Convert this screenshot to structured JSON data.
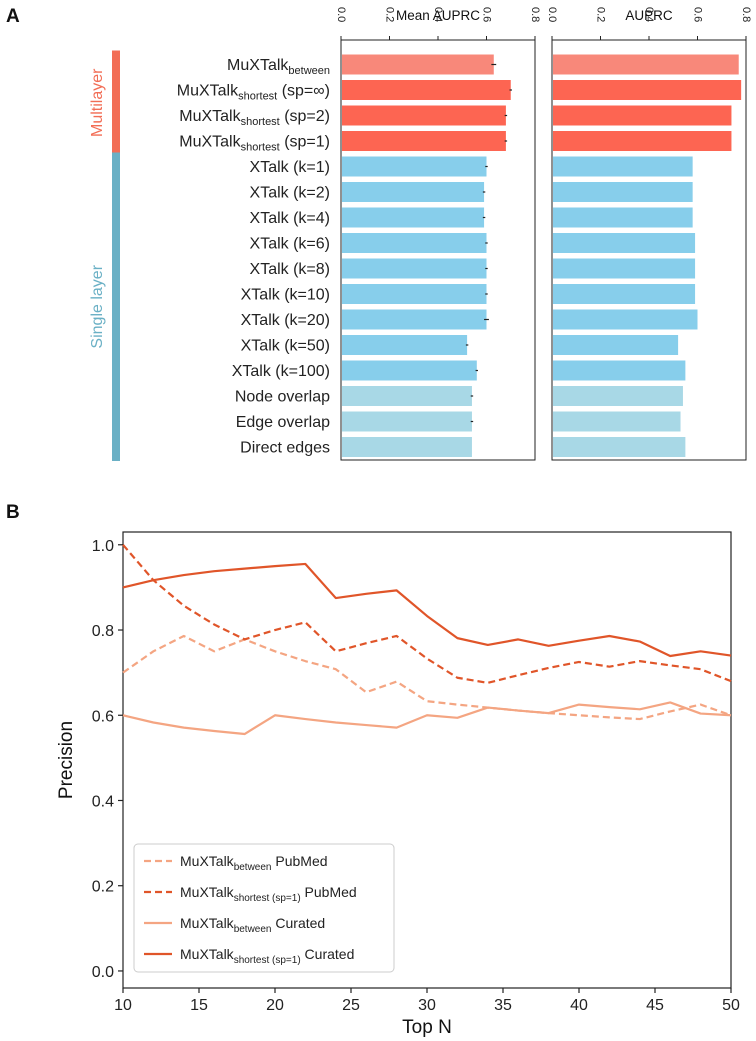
{
  "panel_a_label": "A",
  "panel_b_label": "B",
  "groups": [
    {
      "label": "Multilayer",
      "color": "#f26d55",
      "rows": [
        0,
        3
      ]
    },
    {
      "label": "Single layer",
      "color": "#6ab0c5",
      "rows": [
        4,
        15
      ]
    }
  ],
  "row_labels": [
    {
      "main": "MuXTalk",
      "sub": "between",
      "suffix": ""
    },
    {
      "main": "MuXTalk",
      "sub": "shortest",
      "suffix": " (sp=∞)"
    },
    {
      "main": "MuXTalk",
      "sub": "shortest",
      "suffix": " (sp=2)"
    },
    {
      "main": "MuXTalk",
      "sub": "shortest",
      "suffix": " (sp=1)"
    },
    {
      "main": "XTalk (k=1)",
      "sub": "",
      "suffix": ""
    },
    {
      "main": "XTalk (k=2)",
      "sub": "",
      "suffix": ""
    },
    {
      "main": "XTalk (k=4)",
      "sub": "",
      "suffix": ""
    },
    {
      "main": "XTalk (k=6)",
      "sub": "",
      "suffix": ""
    },
    {
      "main": "XTalk (k=8)",
      "sub": "",
      "suffix": ""
    },
    {
      "main": "XTalk (k=10)",
      "sub": "",
      "suffix": ""
    },
    {
      "main": "XTalk (k=20)",
      "sub": "",
      "suffix": ""
    },
    {
      "main": "XTalk (k=50)",
      "sub": "",
      "suffix": ""
    },
    {
      "main": "XTalk (k=100)",
      "sub": "",
      "suffix": ""
    },
    {
      "main": "Node overlap",
      "sub": "",
      "suffix": ""
    },
    {
      "main": "Edge overlap",
      "sub": "",
      "suffix": ""
    },
    {
      "main": "Direct edges",
      "sub": "",
      "suffix": ""
    }
  ],
  "colors": {
    "muxtalk_between": "#f8887a",
    "muxtalk": "#fd6552",
    "xtalk": "#87ceeb",
    "baseline": "#a8d8e6",
    "pubmed_between": "#f4a582",
    "pubmed_shortest": "#e05529",
    "curated_between": "#f4a582",
    "curated_shortest": "#e05529"
  },
  "chart_data": [
    {
      "type": "bar",
      "orientation": "horizontal",
      "title": "Mean AUPRC",
      "xlim": [
        0,
        0.8
      ],
      "ticks": [
        "0.0",
        "0.2",
        "0.4",
        "0.6",
        "0.8"
      ],
      "categories": [
        "MuXTalk_between",
        "MuXTalk_shortest (sp=∞)",
        "MuXTalk_shortest (sp=2)",
        "MuXTalk_shortest (sp=1)",
        "XTalk (k=1)",
        "XTalk (k=2)",
        "XTalk (k=4)",
        "XTalk (k=6)",
        "XTalk (k=8)",
        "XTalk (k=10)",
        "XTalk (k=20)",
        "XTalk (k=50)",
        "XTalk (k=100)",
        "Node overlap",
        "Edge overlap",
        "Direct edges"
      ],
      "values": [
        0.63,
        0.7,
        0.68,
        0.68,
        0.6,
        0.59,
        0.59,
        0.6,
        0.6,
        0.6,
        0.6,
        0.52,
        0.56,
        0.54,
        0.54,
        0.54
      ],
      "errors": [
        0.01,
        0.005,
        0.005,
        0.005,
        0.005,
        0.005,
        0.005,
        0.005,
        0.005,
        0.005,
        0.01,
        0.005,
        0.005,
        0.005,
        0.005,
        0.0
      ]
    },
    {
      "type": "bar",
      "orientation": "horizontal",
      "title": "AUPRC",
      "xlim": [
        0,
        0.8
      ],
      "ticks": [
        "0.0",
        "0.2",
        "0.4",
        "0.6",
        "0.8"
      ],
      "categories": [
        "MuXTalk_between",
        "MuXTalk_shortest (sp=∞)",
        "MuXTalk_shortest (sp=2)",
        "MuXTalk_shortest (sp=1)",
        "XTalk (k=1)",
        "XTalk (k=2)",
        "XTalk (k=4)",
        "XTalk (k=6)",
        "XTalk (k=8)",
        "XTalk (k=10)",
        "XTalk (k=20)",
        "XTalk (k=50)",
        "XTalk (k=100)",
        "Node overlap",
        "Edge overlap",
        "Direct edges"
      ],
      "values": [
        0.77,
        0.78,
        0.74,
        0.74,
        0.58,
        0.58,
        0.58,
        0.59,
        0.59,
        0.59,
        0.6,
        0.52,
        0.55,
        0.54,
        0.53,
        0.55
      ]
    },
    {
      "type": "line",
      "xlabel": "Top N",
      "ylabel": "Precision",
      "xlim": [
        10,
        50
      ],
      "ylim": [
        0,
        1
      ],
      "xticks": [
        "10",
        "15",
        "20",
        "25",
        "30",
        "35",
        "40",
        "45",
        "50"
      ],
      "yticks": [
        "0.0",
        "0.2",
        "0.4",
        "0.6",
        "0.8",
        "1.0"
      ],
      "legend_location": "lower-left",
      "series": [
        {
          "name": "MuXTalk_between PubMed",
          "legend_main": "MuXTalk",
          "legend_sub": "between",
          "legend_suffix": " PubMed",
          "style": "dashed",
          "color_key": "pubmed_between",
          "x": [
            10,
            12,
            14,
            16,
            18,
            20,
            22,
            24,
            26,
            28,
            30,
            32,
            34,
            36,
            38,
            40,
            42,
            44,
            46,
            48,
            50
          ],
          "y": [
            0.7,
            0.75,
            0.786,
            0.75,
            0.778,
            0.75,
            0.727,
            0.708,
            0.654,
            0.679,
            0.633,
            0.625,
            0.618,
            0.611,
            0.605,
            0.6,
            0.595,
            0.591,
            0.609,
            0.625,
            0.6
          ]
        },
        {
          "name": "MuXTalk_shortest (sp=1) PubMed",
          "legend_main": "MuXTalk",
          "legend_sub": "shortest (sp=1)",
          "legend_suffix": " PubMed",
          "style": "dashed",
          "color_key": "pubmed_shortest",
          "x": [
            10,
            12,
            14,
            16,
            18,
            20,
            22,
            24,
            26,
            28,
            30,
            32,
            34,
            36,
            38,
            40,
            42,
            44,
            46,
            48,
            50
          ],
          "y": [
            1.0,
            0.917,
            0.857,
            0.813,
            0.778,
            0.8,
            0.818,
            0.75,
            0.769,
            0.786,
            0.733,
            0.688,
            0.676,
            0.694,
            0.711,
            0.725,
            0.714,
            0.727,
            0.717,
            0.708,
            0.68
          ]
        },
        {
          "name": "MuXTalk_between Curated",
          "legend_main": "MuXTalk",
          "legend_sub": "between",
          "legend_suffix": " Curated",
          "style": "solid",
          "color_key": "curated_between",
          "x": [
            10,
            12,
            14,
            16,
            18,
            20,
            22,
            24,
            26,
            28,
            30,
            32,
            34,
            36,
            38,
            40,
            42,
            44,
            46,
            48,
            50
          ],
          "y": [
            0.6,
            0.583,
            0.571,
            0.563,
            0.556,
            0.6,
            0.591,
            0.583,
            0.577,
            0.571,
            0.6,
            0.594,
            0.618,
            0.611,
            0.605,
            0.625,
            0.619,
            0.614,
            0.63,
            0.604,
            0.6
          ]
        },
        {
          "name": "MuXTalk_shortest (sp=1) Curated",
          "legend_main": "MuXTalk",
          "legend_sub": "shortest (sp=1)",
          "legend_suffix": " Curated",
          "style": "solid",
          "color_key": "curated_shortest",
          "x": [
            10,
            12,
            14,
            16,
            18,
            20,
            22,
            24,
            26,
            28,
            30,
            32,
            34,
            36,
            38,
            40,
            42,
            44,
            46,
            48,
            50
          ],
          "y": [
            0.9,
            0.917,
            0.929,
            0.938,
            0.944,
            0.95,
            0.955,
            0.875,
            0.885,
            0.893,
            0.833,
            0.781,
            0.765,
            0.778,
            0.763,
            0.775,
            0.786,
            0.773,
            0.739,
            0.75,
            0.74
          ]
        }
      ]
    }
  ]
}
